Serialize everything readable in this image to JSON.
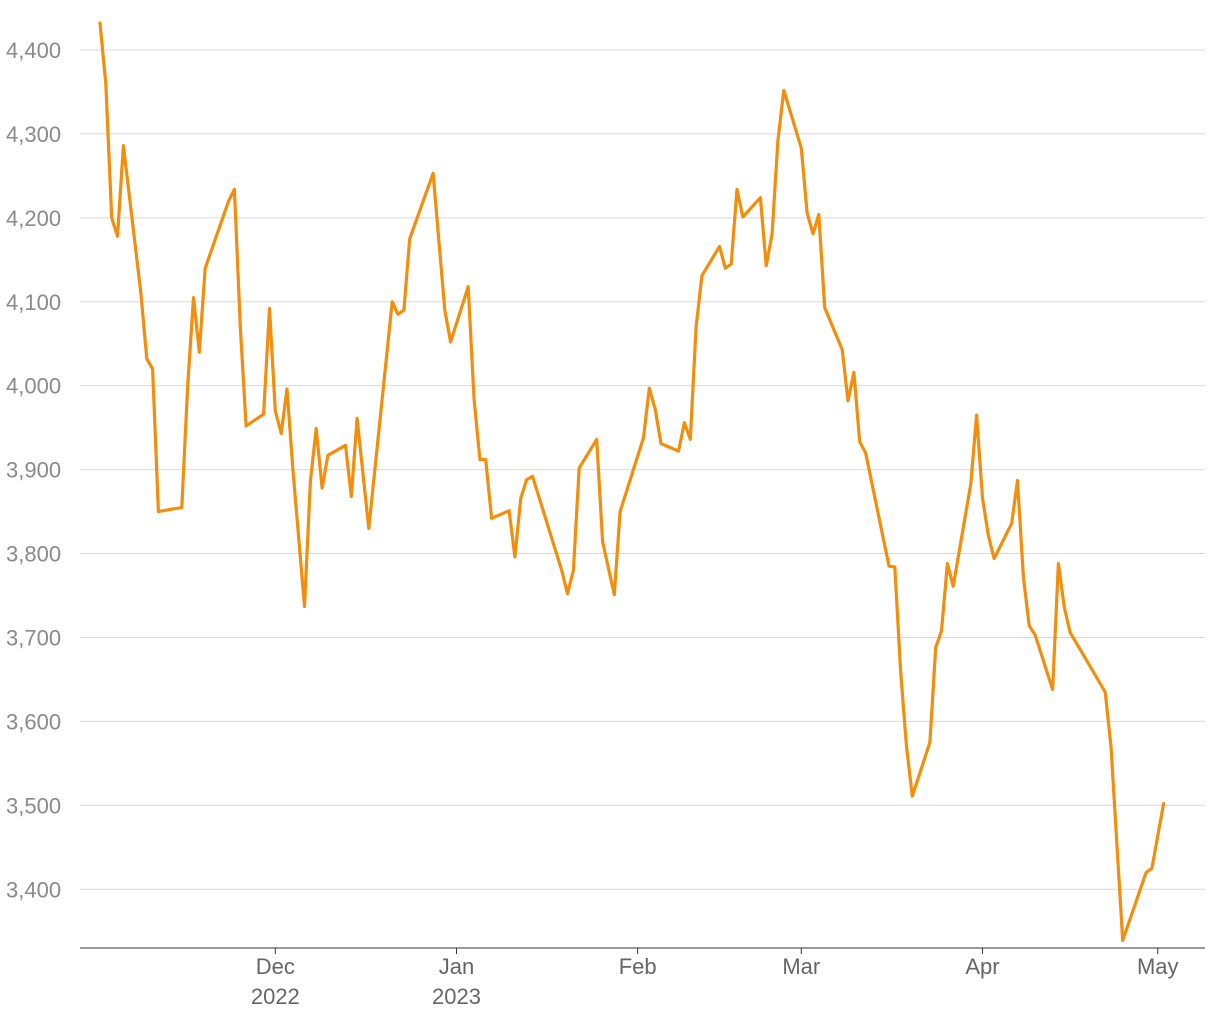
{
  "colors": {
    "series": "#f28e0c",
    "grid": "#d9d9d9",
    "axis": "#333333"
  },
  "chart_data": {
    "type": "line",
    "title": "",
    "xlabel": "",
    "ylabel": "",
    "grid": true,
    "legend": "none",
    "ylim": [
      3330,
      4450
    ],
    "xlim": [
      "2022-11-01",
      "2023-05-06"
    ],
    "y_ticks": [
      {
        "value": 3400,
        "label": "3,400"
      },
      {
        "value": 3500,
        "label": "3,500"
      },
      {
        "value": 3600,
        "label": "3,600"
      },
      {
        "value": 3700,
        "label": "3,700"
      },
      {
        "value": 3800,
        "label": "3,800"
      },
      {
        "value": 3900,
        "label": "3,900"
      },
      {
        "value": 4000,
        "label": "4,000"
      },
      {
        "value": 4100,
        "label": "4,100"
      },
      {
        "value": 4200,
        "label": "4,200"
      },
      {
        "value": 4300,
        "label": "4,300"
      },
      {
        "value": 4400,
        "label": "4,400"
      }
    ],
    "x_ticks": [
      {
        "date": "2022-12-01",
        "label": "Dec",
        "sublabel": "2022"
      },
      {
        "date": "2023-01-01",
        "label": "Jan",
        "sublabel": "2023"
      },
      {
        "date": "2023-02-01",
        "label": "Feb",
        "sublabel": ""
      },
      {
        "date": "2023-03-01",
        "label": "Mar",
        "sublabel": ""
      },
      {
        "date": "2023-04-01",
        "label": "Apr",
        "sublabel": ""
      },
      {
        "date": "2023-05-01",
        "label": "May",
        "sublabel": ""
      }
    ],
    "series": [
      {
        "color": "#f28e0c",
        "points": [
          [
            "2022-11-01",
            4432
          ],
          [
            "2022-11-02",
            4360
          ],
          [
            "2022-11-03",
            4200
          ],
          [
            "2022-11-04",
            4178
          ],
          [
            "2022-11-05",
            4286
          ],
          [
            "2022-11-08",
            4110
          ],
          [
            "2022-11-09",
            4032
          ],
          [
            "2022-11-10",
            4020
          ],
          [
            "2022-11-11",
            3850
          ],
          [
            "2022-11-15",
            3855
          ],
          [
            "2022-11-16",
            4000
          ],
          [
            "2022-11-17",
            4105
          ],
          [
            "2022-11-18",
            4040
          ],
          [
            "2022-11-19",
            4140
          ],
          [
            "2022-11-23",
            4220
          ],
          [
            "2022-11-24",
            4234
          ],
          [
            "2022-11-25",
            4070
          ],
          [
            "2022-11-26",
            3952
          ],
          [
            "2022-11-29",
            3966
          ],
          [
            "2022-11-30",
            4092
          ],
          [
            "2022-12-01",
            3970
          ],
          [
            "2022-12-02",
            3943
          ],
          [
            "2022-12-03",
            3996
          ],
          [
            "2022-12-04",
            3900
          ],
          [
            "2022-12-06",
            3737
          ],
          [
            "2022-12-07",
            3886
          ],
          [
            "2022-12-08",
            3949
          ],
          [
            "2022-12-09",
            3878
          ],
          [
            "2022-12-10",
            3917
          ],
          [
            "2022-12-13",
            3929
          ],
          [
            "2022-12-14",
            3868
          ],
          [
            "2022-12-15",
            3961
          ],
          [
            "2022-12-17",
            3830
          ],
          [
            "2022-12-21",
            4100
          ],
          [
            "2022-12-22",
            4085
          ],
          [
            "2022-12-23",
            4090
          ],
          [
            "2022-12-24",
            4175
          ],
          [
            "2022-12-28",
            4253
          ],
          [
            "2022-12-30",
            4090
          ],
          [
            "2022-12-31",
            4052
          ],
          [
            "2023-01-03",
            4118
          ],
          [
            "2023-01-04",
            3985
          ],
          [
            "2023-01-05",
            3912
          ],
          [
            "2023-01-06",
            3912
          ],
          [
            "2023-01-07",
            3842
          ],
          [
            "2023-01-10",
            3851
          ],
          [
            "2023-01-11",
            3796
          ],
          [
            "2023-01-12",
            3866
          ],
          [
            "2023-01-13",
            3888
          ],
          [
            "2023-01-14",
            3892
          ],
          [
            "2023-01-19",
            3780
          ],
          [
            "2023-01-20",
            3752
          ],
          [
            "2023-01-21",
            3780
          ],
          [
            "2023-01-22",
            3902
          ],
          [
            "2023-01-25",
            3936
          ],
          [
            "2023-01-26",
            3814
          ],
          [
            "2023-01-28",
            3751
          ],
          [
            "2023-01-29",
            3850
          ],
          [
            "2023-02-02",
            3938
          ],
          [
            "2023-02-03",
            3997
          ],
          [
            "2023-02-04",
            3972
          ],
          [
            "2023-02-05",
            3931
          ],
          [
            "2023-02-08",
            3922
          ],
          [
            "2023-02-09",
            3956
          ],
          [
            "2023-02-10",
            3936
          ],
          [
            "2023-02-11",
            4070
          ],
          [
            "2023-02-12",
            4131
          ],
          [
            "2023-02-15",
            4166
          ],
          [
            "2023-02-16",
            4140
          ],
          [
            "2023-02-17",
            4145
          ],
          [
            "2023-02-18",
            4234
          ],
          [
            "2023-02-19",
            4201
          ],
          [
            "2023-02-22",
            4224
          ],
          [
            "2023-02-23",
            4143
          ],
          [
            "2023-02-24",
            4181
          ],
          [
            "2023-02-25",
            4292
          ],
          [
            "2023-02-26",
            4352
          ],
          [
            "2023-03-01",
            4283
          ],
          [
            "2023-03-02",
            4206
          ],
          [
            "2023-03-03",
            4181
          ],
          [
            "2023-03-04",
            4204
          ],
          [
            "2023-03-05",
            4093
          ],
          [
            "2023-03-08",
            4043
          ],
          [
            "2023-03-09",
            3982
          ],
          [
            "2023-03-10",
            4016
          ],
          [
            "2023-03-11",
            3933
          ],
          [
            "2023-03-12",
            3920
          ],
          [
            "2023-03-16",
            3785
          ],
          [
            "2023-03-17",
            3784
          ],
          [
            "2023-03-18",
            3660
          ],
          [
            "2023-03-19",
            3570
          ],
          [
            "2023-03-20",
            3511
          ],
          [
            "2023-03-23",
            3575
          ],
          [
            "2023-03-24",
            3688
          ],
          [
            "2023-03-25",
            3708
          ],
          [
            "2023-03-26",
            3788
          ],
          [
            "2023-03-27",
            3761
          ],
          [
            "2023-03-30",
            3883
          ],
          [
            "2023-03-31",
            3965
          ],
          [
            "2023-04-01",
            3866
          ],
          [
            "2023-04-02",
            3822
          ],
          [
            "2023-04-03",
            3794
          ],
          [
            "2023-04-06",
            3836
          ],
          [
            "2023-04-07",
            3887
          ],
          [
            "2023-04-08",
            3772
          ],
          [
            "2023-04-09",
            3714
          ],
          [
            "2023-04-10",
            3703
          ],
          [
            "2023-04-13",
            3638
          ],
          [
            "2023-04-14",
            3788
          ],
          [
            "2023-04-15",
            3736
          ],
          [
            "2023-04-16",
            3706
          ],
          [
            "2023-04-22",
            3635
          ],
          [
            "2023-04-23",
            3570
          ],
          [
            "2023-04-25",
            3339
          ],
          [
            "2023-04-29",
            3420
          ],
          [
            "2023-04-30",
            3425
          ],
          [
            "2023-05-02",
            3502
          ]
        ]
      }
    ]
  }
}
